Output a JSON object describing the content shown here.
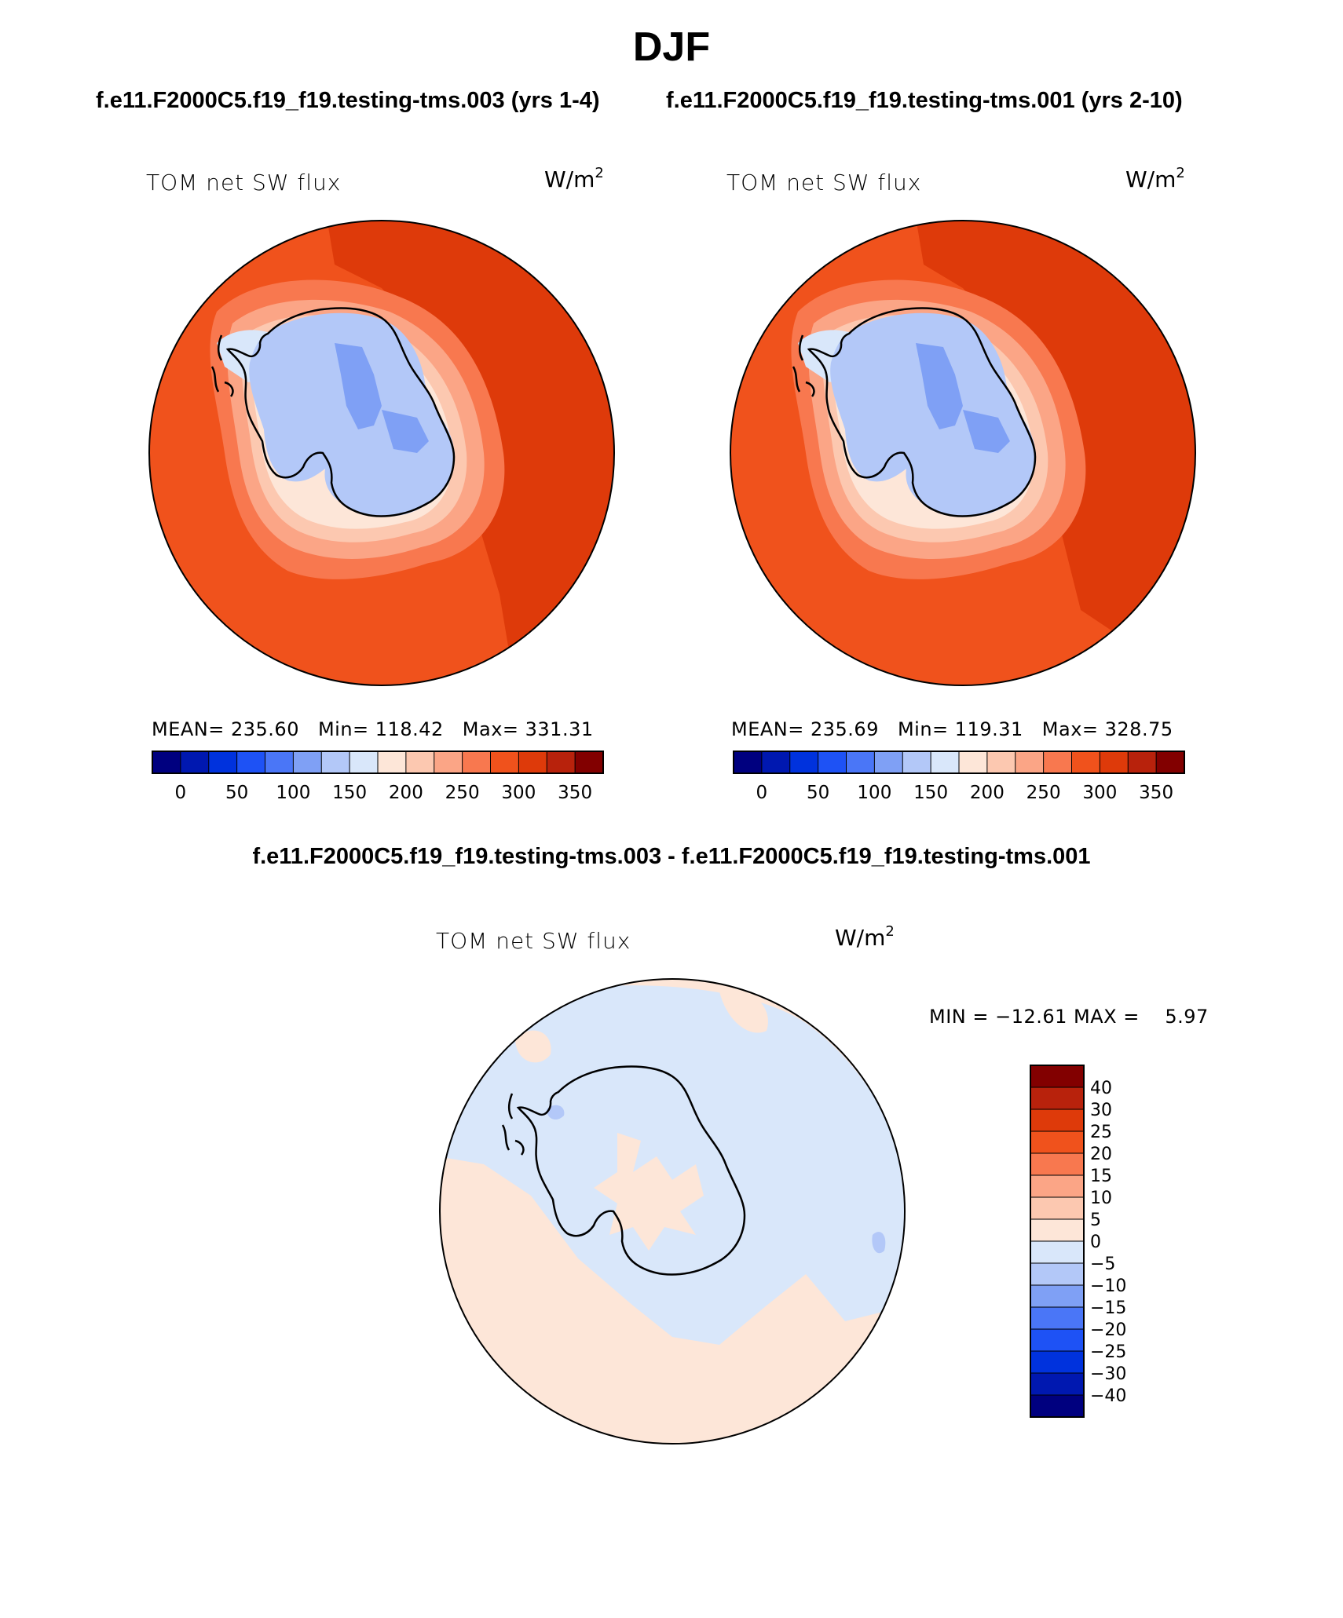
{
  "figure": {
    "title": "DJF",
    "case_a_heading": "f.e11.F2000C5.f19_f19.testing-tms.003 (yrs 1-4)",
    "case_b_heading": "f.e11.F2000C5.f19_f19.testing-tms.001 (yrs 2-10)",
    "diff_heading": "f.e11.F2000C5.f19_f19.testing-tms.003 - f.e11.F2000C5.f19_f19.testing-tms.001"
  },
  "panels": {
    "left": {
      "variable": "TOM net SW flux",
      "units_base": "W/m",
      "units_exp": "2",
      "mean_text": "MEAN= 235.60",
      "min_text": "Min= 118.42",
      "max_text": "Max= 331.31"
    },
    "right": {
      "variable": "TOM net SW flux",
      "units_base": "W/m",
      "units_exp": "2",
      "mean_text": "MEAN= 235.69",
      "min_text": "Min= 119.31",
      "max_text": "Max= 328.75"
    },
    "diff": {
      "variable": "TOM net SW flux",
      "units_base": "W/m",
      "units_exp": "2",
      "minmax_text": "MIN = −12.61 MAX =    5.97"
    }
  },
  "colorbar_abs": {
    "colors": [
      "#00007f",
      "#0018b0",
      "#0032dd",
      "#1e52f5",
      "#4a76f7",
      "#7fa0f5",
      "#b3c8f8",
      "#d9e7fa",
      "#fde6d8",
      "#fcc8b0",
      "#fba586",
      "#f8784f",
      "#f0521c",
      "#de3a0a",
      "#b8220c",
      "#820000"
    ],
    "tick_labels": [
      "0",
      "50",
      "100",
      "150",
      "200",
      "250",
      "300",
      "350"
    ]
  },
  "colorbar_diff": {
    "colors": [
      "#820000",
      "#b8220c",
      "#de3a0a",
      "#f0521c",
      "#f8784f",
      "#fba586",
      "#fcc8b0",
      "#fde6d8",
      "#d9e7fa",
      "#b3c8f8",
      "#7fa0f5",
      "#4a76f7",
      "#1e52f5",
      "#0032dd",
      "#0018b0",
      "#00007f"
    ],
    "tick_labels": [
      "40",
      "30",
      "25",
      "20",
      "15",
      "10",
      "5",
      "0",
      "−5",
      "−10",
      "−15",
      "−20",
      "−25",
      "−30",
      "−40"
    ]
  },
  "map_colors": {
    "ocean_main": "#f0521c",
    "ocean_north": "#de3a0a",
    "ring_1": "#f8784f",
    "ring_2": "#fba586",
    "ring_3": "#fcc8b0",
    "ring_4": "#fde6d8",
    "ice_pale": "#d9e7fa",
    "ice": "#b3c8f8",
    "ice_dark": "#7fa0f5",
    "diff_pos": "#fde6d8",
    "diff_neg": "#d9e7fa",
    "diff_neg2": "#b3c8f8"
  }
}
